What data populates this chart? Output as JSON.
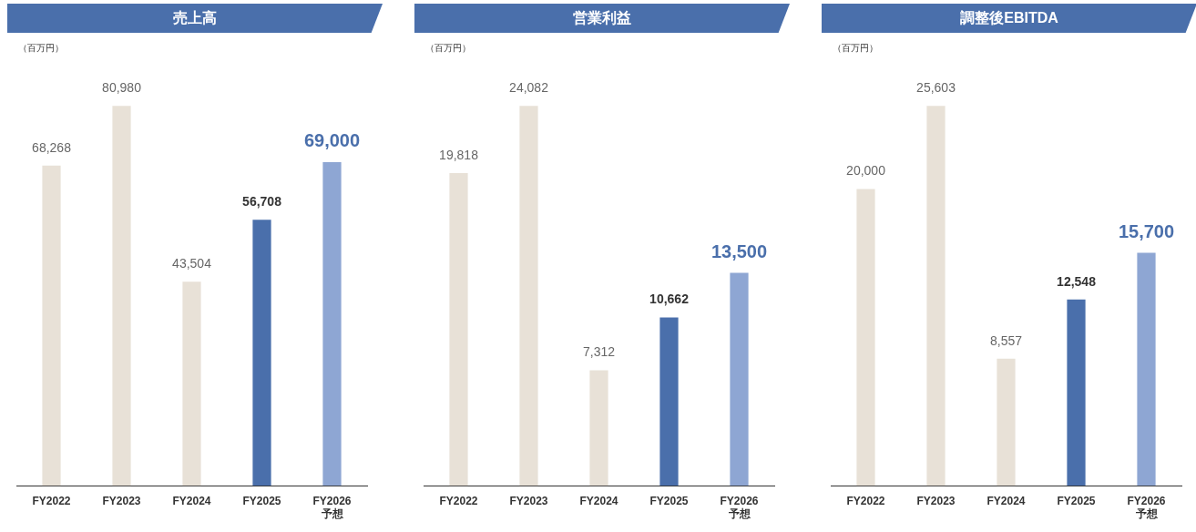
{
  "chart_data": [
    {
      "type": "bar",
      "title": "売上高",
      "ylabel": "（百万円）",
      "categories": [
        "FY2022",
        "FY2023",
        "FY2024",
        "FY2025",
        "FY2026\n予想"
      ],
      "values": [
        68268,
        80980,
        43504,
        56708,
        69000
      ],
      "value_labels": [
        "68,268",
        "80,980",
        "43,504",
        "56,708",
        "69,000"
      ],
      "colors": [
        "#e8e1d7",
        "#e8e1d7",
        "#e8e1d7",
        "#4a6fab",
        "#8ea6d3"
      ],
      "legend": false,
      "tick_labels": "x"
    },
    {
      "type": "bar",
      "title": "営業利益",
      "ylabel": "（百万円）",
      "categories": [
        "FY2022",
        "FY2023",
        "FY2024",
        "FY2025",
        "FY2026\n予想"
      ],
      "values": [
        19818,
        24082,
        7312,
        10662,
        13500
      ],
      "value_labels": [
        "19,818",
        "24,082",
        "7,312",
        "10,662",
        "13,500"
      ],
      "colors": [
        "#e8e1d7",
        "#e8e1d7",
        "#e8e1d7",
        "#4a6fab",
        "#8ea6d3"
      ],
      "legend": false,
      "tick_labels": "x"
    },
    {
      "type": "bar",
      "title": "調整後EBITDA",
      "ylabel": "（百万円）",
      "categories": [
        "FY2022",
        "FY2023",
        "FY2024",
        "FY2025",
        "FY2026\n予想"
      ],
      "values": [
        20000,
        25603,
        8557,
        12548,
        15700
      ],
      "value_labels": [
        "20,000",
        "25,603",
        "8,557",
        "12,548",
        "15,700"
      ],
      "colors": [
        "#e8e1d7",
        "#e8e1d7",
        "#e8e1d7",
        "#4a6fab",
        "#8ea6d3"
      ],
      "legend": false,
      "tick_labels": "x"
    }
  ]
}
